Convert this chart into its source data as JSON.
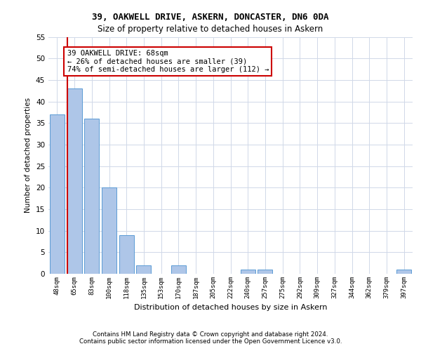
{
  "title1": "39, OAKWELL DRIVE, ASKERN, DONCASTER, DN6 0DA",
  "title2": "Size of property relative to detached houses in Askern",
  "xlabel": "Distribution of detached houses by size in Askern",
  "ylabel": "Number of detached properties",
  "categories": [
    "48sqm",
    "65sqm",
    "83sqm",
    "100sqm",
    "118sqm",
    "135sqm",
    "153sqm",
    "170sqm",
    "187sqm",
    "205sqm",
    "222sqm",
    "240sqm",
    "257sqm",
    "275sqm",
    "292sqm",
    "309sqm",
    "327sqm",
    "344sqm",
    "362sqm",
    "379sqm",
    "397sqm"
  ],
  "values": [
    37,
    43,
    36,
    20,
    9,
    2,
    0,
    2,
    0,
    0,
    0,
    1,
    1,
    0,
    0,
    0,
    0,
    0,
    0,
    0,
    1
  ],
  "bar_color": "#aec6e8",
  "bar_edge_color": "#5b9bd5",
  "highlight_line_color": "#cc0000",
  "annotation_text": "39 OAKWELL DRIVE: 68sqm\n← 26% of detached houses are smaller (39)\n74% of semi-detached houses are larger (112) →",
  "annotation_box_color": "#cc0000",
  "ylim": [
    0,
    55
  ],
  "yticks": [
    0,
    5,
    10,
    15,
    20,
    25,
    30,
    35,
    40,
    45,
    50,
    55
  ],
  "footer1": "Contains HM Land Registry data © Crown copyright and database right 2024.",
  "footer2": "Contains public sector information licensed under the Open Government Licence v3.0.",
  "bg_color": "#ffffff",
  "grid_color": "#d0d8e8"
}
